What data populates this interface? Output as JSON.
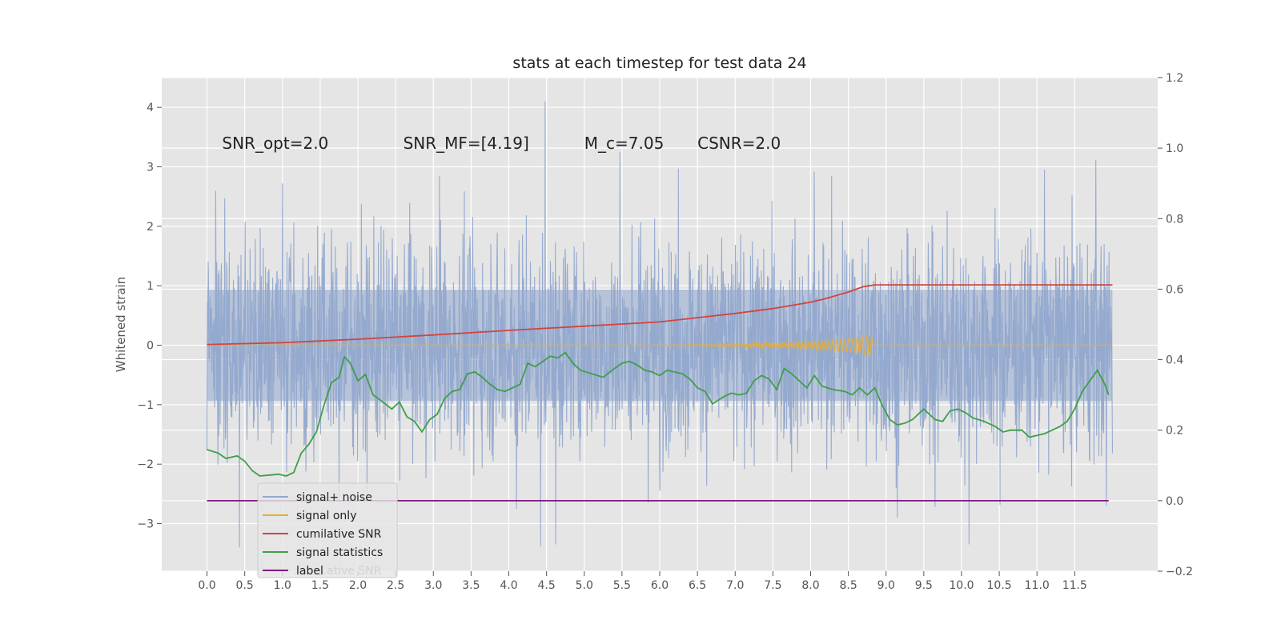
{
  "chart_data": {
    "type": "line",
    "title": "stats at each timestep for test data 24",
    "ylabel": "Whitened strain",
    "xlim": [
      -0.6,
      12.6
    ],
    "ylim": [
      -3.8,
      4.5
    ],
    "y2lim": [
      -0.2,
      1.2
    ],
    "grid": true,
    "legend_position": "lower-left",
    "x_ticks": [
      "0.0",
      "0.5",
      "1.0",
      "1.5",
      "2.0",
      "2.5",
      "3.0",
      "3.5",
      "4.0",
      "4.5",
      "5.0",
      "5.5",
      "6.0",
      "6.5",
      "7.0",
      "7.5",
      "8.0",
      "8.5",
      "9.0",
      "9.5",
      "10.0",
      "10.5",
      "11.0",
      "11.5"
    ],
    "y_ticks": [
      "4",
      "3",
      "2",
      "1",
      "0",
      "−1",
      "−2",
      "−3"
    ],
    "y2_ticks": [
      "1.2",
      "1.0",
      "0.8",
      "0.6",
      "0.4",
      "0.2",
      "0.0",
      "−0.2"
    ],
    "annotations": [
      {
        "id": "snr-opt",
        "x": 0.2,
        "y": 3.3,
        "text": "SNR_opt=2.0"
      },
      {
        "id": "snr-mf",
        "x": 2.6,
        "y": 3.3,
        "text": "SNR_MF=[4.19]"
      },
      {
        "id": "mc",
        "x": 5.0,
        "y": 3.3,
        "text": "M_c=7.05"
      },
      {
        "id": "csnr",
        "x": 6.5,
        "y": 3.3,
        "text": "CSNR=2.0"
      }
    ],
    "series": [
      {
        "name": "signal+ noise",
        "color": "#92a8cd",
        "axis": "left",
        "x_range": [
          0.0,
          12.0
        ],
        "envelope": {
          "upper": 1.3,
          "lower": -1.3,
          "peak_max": 4.1,
          "peak_min": -3.4
        },
        "spikes": [
          {
            "x": 4.48,
            "y": 4.12
          },
          {
            "x": 5.47,
            "y": 3.25
          },
          {
            "x": 11.78,
            "y": 3.12
          },
          {
            "x": 8.05,
            "y": 2.92
          },
          {
            "x": 8.28,
            "y": 2.85
          },
          {
            "x": 1.0,
            "y": 2.72
          },
          {
            "x": 3.08,
            "y": 2.85
          },
          {
            "x": 6.25,
            "y": 2.97
          },
          {
            "x": 11.1,
            "y": 2.95
          },
          {
            "x": 4.42,
            "y": -3.38
          },
          {
            "x": 4.62,
            "y": -3.35
          },
          {
            "x": 10.1,
            "y": -3.35
          },
          {
            "x": 0.43,
            "y": -3.42
          },
          {
            "x": 9.15,
            "y": -2.9
          },
          {
            "x": 9.65,
            "y": -2.72
          },
          {
            "x": 4.1,
            "y": -2.75
          },
          {
            "x": 6.0,
            "y": -2.45
          },
          {
            "x": 1.75,
            "y": -2.6
          },
          {
            "x": 11.92,
            "y": -2.7
          }
        ]
      },
      {
        "name": "signal only",
        "color": "#e5ae38",
        "axis": "left",
        "x": [
          0.0,
          6.0,
          7.0,
          7.8,
          8.3,
          8.6,
          8.8,
          8.84,
          12.0
        ],
        "amplitude": [
          0.0,
          0.0,
          0.02,
          0.05,
          0.09,
          0.13,
          0.2,
          0.0,
          0.0
        ]
      },
      {
        "name": "cumilative SNR",
        "color": "#d1443f",
        "axis": "right",
        "x": [
          0.0,
          1.0,
          2.0,
          3.0,
          4.0,
          5.0,
          6.0,
          6.5,
          7.0,
          7.5,
          8.0,
          8.2,
          8.5,
          8.7,
          8.85,
          12.0
        ],
        "y": [
          0.443,
          0.448,
          0.458,
          0.47,
          0.483,
          0.495,
          0.507,
          0.519,
          0.531,
          0.545,
          0.563,
          0.573,
          0.592,
          0.607,
          0.612,
          0.612
        ]
      },
      {
        "name": "signal statistics",
        "color": "#3e9e49",
        "axis": "right",
        "x": [
          0.0,
          0.15,
          0.25,
          0.4,
          0.5,
          0.6,
          0.7,
          0.85,
          0.95,
          1.05,
          1.15,
          1.25,
          1.35,
          1.45,
          1.55,
          1.65,
          1.75,
          1.82,
          1.9,
          2.0,
          2.1,
          2.2,
          2.3,
          2.45,
          2.55,
          2.65,
          2.75,
          2.85,
          2.95,
          3.05,
          3.15,
          3.25,
          3.35,
          3.45,
          3.55,
          3.65,
          3.75,
          3.85,
          3.95,
          4.05,
          4.15,
          4.25,
          4.35,
          4.45,
          4.55,
          4.65,
          4.75,
          4.85,
          4.95,
          5.1,
          5.25,
          5.4,
          5.5,
          5.6,
          5.7,
          5.8,
          5.9,
          6.0,
          6.1,
          6.2,
          6.3,
          6.4,
          6.5,
          6.6,
          6.7,
          6.85,
          6.95,
          7.05,
          7.15,
          7.25,
          7.35,
          7.45,
          7.55,
          7.65,
          7.75,
          7.85,
          7.95,
          8.05,
          8.15,
          8.3,
          8.45,
          8.55,
          8.65,
          8.75,
          8.85,
          8.95,
          9.05,
          9.15,
          9.25,
          9.35,
          9.5,
          9.65,
          9.75,
          9.85,
          9.95,
          10.05,
          10.15,
          10.3,
          10.45,
          10.55,
          10.65,
          10.8,
          10.9,
          11.0,
          11.1,
          11.2,
          11.3,
          11.4,
          11.5,
          11.6,
          11.7,
          11.8,
          11.9,
          11.95
        ],
        "y": [
          0.145,
          0.135,
          0.12,
          0.127,
          0.112,
          0.085,
          0.07,
          0.073,
          0.075,
          0.07,
          0.08,
          0.135,
          0.16,
          0.195,
          0.27,
          0.335,
          0.35,
          0.408,
          0.39,
          0.34,
          0.358,
          0.3,
          0.285,
          0.26,
          0.28,
          0.238,
          0.225,
          0.195,
          0.23,
          0.245,
          0.29,
          0.31,
          0.315,
          0.36,
          0.365,
          0.35,
          0.33,
          0.315,
          0.31,
          0.32,
          0.33,
          0.39,
          0.38,
          0.395,
          0.41,
          0.405,
          0.42,
          0.39,
          0.37,
          0.36,
          0.35,
          0.375,
          0.39,
          0.395,
          0.385,
          0.37,
          0.365,
          0.355,
          0.37,
          0.365,
          0.36,
          0.345,
          0.32,
          0.31,
          0.275,
          0.295,
          0.305,
          0.3,
          0.305,
          0.34,
          0.355,
          0.345,
          0.315,
          0.375,
          0.36,
          0.34,
          0.32,
          0.355,
          0.325,
          0.315,
          0.31,
          0.3,
          0.32,
          0.3,
          0.32,
          0.27,
          0.23,
          0.215,
          0.22,
          0.23,
          0.26,
          0.23,
          0.225,
          0.255,
          0.26,
          0.25,
          0.235,
          0.225,
          0.21,
          0.195,
          0.2,
          0.2,
          0.18,
          0.185,
          0.19,
          0.2,
          0.21,
          0.225,
          0.26,
          0.31,
          0.34,
          0.37,
          0.33,
          0.3
        ]
      },
      {
        "name": "label",
        "color": "#7d1a7e",
        "axis": "right",
        "x": [
          0.0,
          11.95
        ],
        "y": [
          0.0,
          0.0
        ]
      }
    ],
    "legend_hidden_text": "cumilative SNR"
  }
}
